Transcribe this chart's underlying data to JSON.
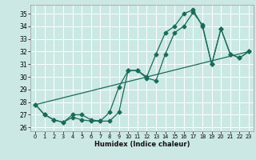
{
  "title": "",
  "xlabel": "Humidex (Indice chaleur)",
  "bg_color": "#cce8e4",
  "grid_color": "#ffffff",
  "line_color": "#1a6b5a",
  "xlim": [
    -0.5,
    23.5
  ],
  "ylim": [
    25.7,
    35.7
  ],
  "yticks": [
    26,
    27,
    28,
    29,
    30,
    31,
    32,
    33,
    34,
    35
  ],
  "xticks": [
    0,
    1,
    2,
    3,
    4,
    5,
    6,
    7,
    8,
    9,
    10,
    11,
    12,
    13,
    14,
    15,
    16,
    17,
    18,
    19,
    20,
    21,
    22,
    23
  ],
  "series1_x": [
    0,
    1,
    2,
    3,
    4,
    5,
    6,
    7,
    8,
    9,
    10,
    11,
    12,
    13,
    14,
    15,
    16,
    17,
    18,
    19,
    20,
    21,
    22,
    23
  ],
  "series1_y": [
    27.8,
    27.0,
    26.6,
    26.4,
    26.8,
    26.6,
    26.5,
    26.5,
    26.5,
    27.2,
    30.5,
    30.5,
    29.9,
    29.7,
    31.8,
    33.5,
    34.0,
    35.1,
    34.1,
    31.0,
    33.8,
    31.8,
    31.5,
    32.0
  ],
  "series2_x": [
    0,
    1,
    2,
    3,
    4,
    5,
    6,
    7,
    8,
    9,
    10,
    11,
    12,
    13,
    14,
    15,
    16,
    17,
    18,
    19,
    20,
    21,
    22,
    23
  ],
  "series2_y": [
    27.8,
    27.0,
    26.6,
    26.4,
    27.0,
    27.0,
    26.6,
    26.5,
    27.2,
    29.2,
    30.5,
    30.5,
    30.0,
    31.8,
    33.5,
    34.0,
    35.0,
    35.3,
    34.0,
    31.0,
    33.8,
    31.8,
    31.5,
    32.0
  ],
  "series3_x": [
    0,
    23
  ],
  "series3_y": [
    27.8,
    32.0
  ],
  "markersize": 2.5,
  "linewidth": 0.9
}
